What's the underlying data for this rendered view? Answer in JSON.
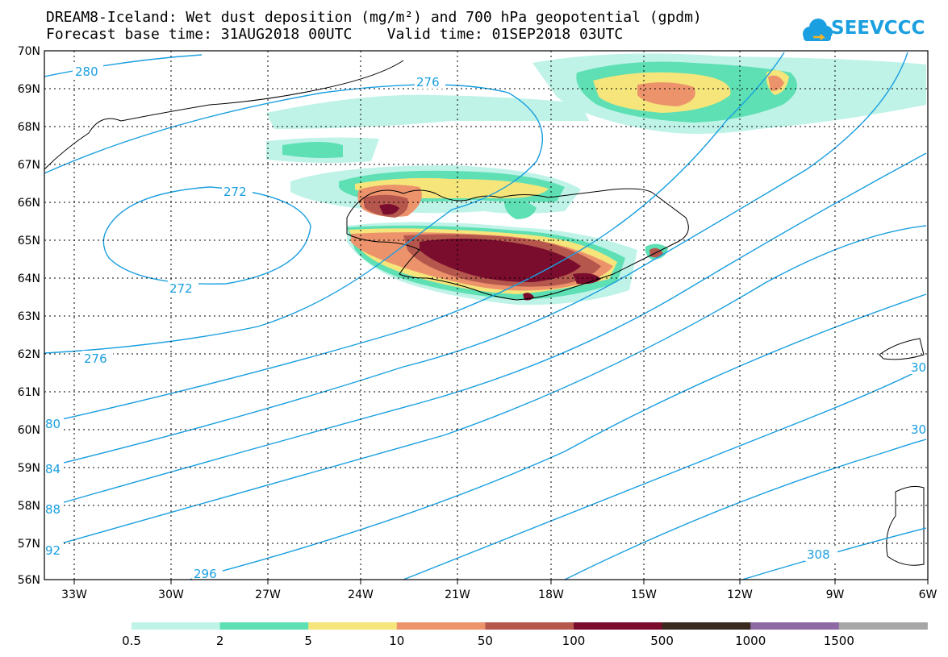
{
  "title": {
    "line1": "DREAM8-Iceland: Wet dust deposition (mg/m²) and 700 hPa geopotential (gpdm)",
    "line2": "Forecast base time: 31AUG2018 00UTC    Valid time: 01SEP2018 03UTC"
  },
  "logo": {
    "text": "SEEVCCC",
    "icon": "cloud-logo-icon"
  },
  "colors": {
    "contour": "#1a9fe0"
  },
  "map": {
    "lon_ticks": [
      "33W",
      "30W",
      "27W",
      "24W",
      "21W",
      "18W",
      "15W",
      "12W",
      "9W",
      "6W"
    ],
    "lat_ticks": [
      "70N",
      "69N",
      "68N",
      "67N",
      "66N",
      "65N",
      "64N",
      "63N",
      "62N",
      "61N",
      "60N",
      "59N",
      "58N",
      "57N",
      "56N"
    ],
    "contour_labels": [
      "280",
      "276",
      "272",
      "272",
      "276",
      "80",
      "84",
      "88",
      "92",
      "296",
      "30",
      "30",
      "308"
    ]
  },
  "colorbar": {
    "labels": [
      "0.5",
      "2",
      "5",
      "10",
      "50",
      "100",
      "500",
      "1000",
      "1500"
    ],
    "colors": [
      "#bff3e8",
      "#5ee0b4",
      "#f5e57a",
      "#ec936c",
      "#b5574d",
      "#7a0c2e",
      "#3a2a1e",
      "#8d6aa3",
      "#a6a6a6"
    ]
  }
}
